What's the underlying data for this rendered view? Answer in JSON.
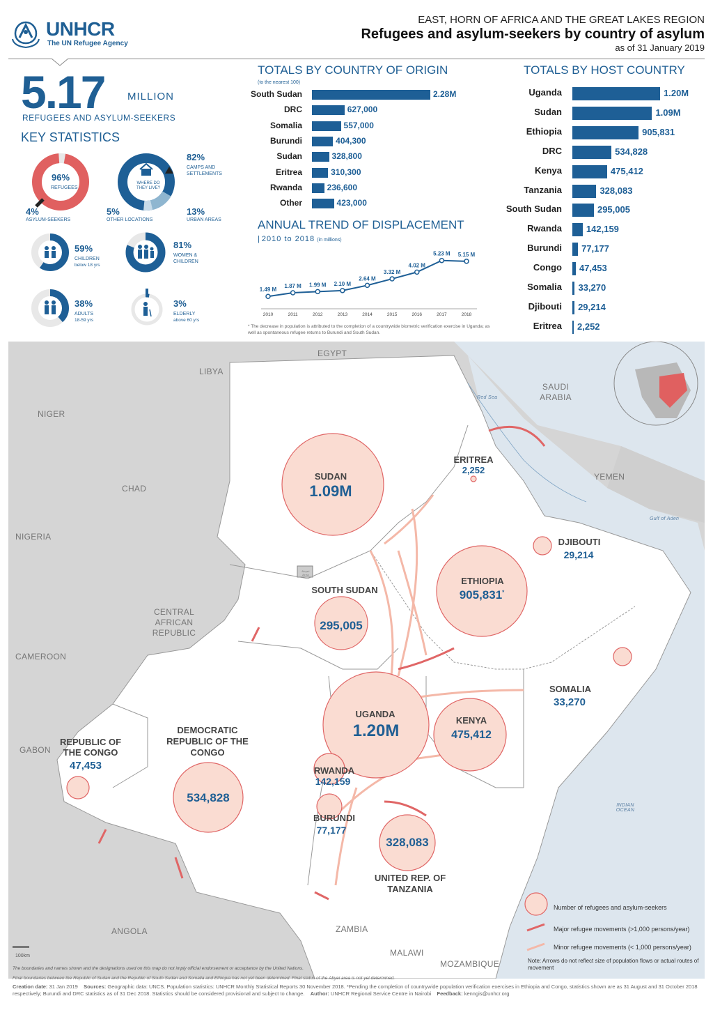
{
  "header": {
    "logo_text": "UNHCR",
    "logo_sub": "The UN Refugee Agency",
    "region": "EAST, HORN OF AFRICA AND THE GREAT LAKES REGION",
    "title": "Refugees and asylum-seekers by country of asylum",
    "date": "as of 31 January 2019"
  },
  "summary": {
    "total": "5.17",
    "unit": "MILLION",
    "caption": "REFUGEES AND ASYLUM-SEEKERS",
    "key_stats_title": "KEY STATISTICS"
  },
  "key_stats": {
    "refugees_pct": "96%",
    "refugees_label": "REFUGEES",
    "asylum_pct": "4%",
    "asylum_label": "ASYLUM-SEEKERS",
    "where_label": "WHERE DO THEY LIVE?",
    "camps_pct": "82%",
    "camps_label": "CAMPS and SETTLEMENTS",
    "other_pct": "5%",
    "other_label": "OTHER LOCATIONS",
    "urban_pct": "13%",
    "urban_label": "URBAN AREAS",
    "children_pct": "59%",
    "children_label": "CHILDREN",
    "children_sub": "below 18 yrs",
    "women_pct": "81%",
    "women_label": "WOMEN & CHILDREN",
    "adults_pct": "38%",
    "adults_label": "ADULTS",
    "adults_sub": "18-59 yrs",
    "elderly_pct": "3%",
    "elderly_label": "ELDERLY",
    "elderly_sub": "above 60 yrs"
  },
  "origin": {
    "title": "TOTALS BY COUNTRY OF ORIGIN",
    "note": "(to the nearest 100)"
  },
  "host": {
    "title": "TOTALS BY HOST COUNTRY"
  },
  "trend": {
    "title": "ANNUAL TREND OF DISPLACEMENT",
    "subtitle": "2010 to 2018",
    "unit": "(in millions)",
    "note": "* The decrease in population is attributed to the completion of a countrywide biometric verification exercise in Uganda; as well as spontaneous refugee returns to Burundi and South Sudan."
  },
  "chart_data": [
    {
      "type": "bar",
      "title": "TOTALS BY COUNTRY OF ORIGIN",
      "categories": [
        "South Sudan",
        "DRC",
        "Somalia",
        "Burundi",
        "Sudan",
        "Eritrea",
        "Rwanda",
        "Other"
      ],
      "values": [
        2280000,
        627000,
        557000,
        404300,
        328800,
        310300,
        236600,
        423000
      ],
      "labels": [
        "2.28M",
        "627,000",
        "557,000",
        "404,300",
        "328,800",
        "310,300",
        "236,600",
        "423,000"
      ]
    },
    {
      "type": "bar",
      "title": "TOTALS BY HOST COUNTRY",
      "categories": [
        "Uganda",
        "Sudan",
        "Ethiopia",
        "DRC",
        "Kenya",
        "Tanzania",
        "South Sudan",
        "Rwanda",
        "Burundi",
        "Congo",
        "Somalia",
        "Djibouti",
        "Eritrea"
      ],
      "values": [
        1200000,
        1090000,
        905831,
        534828,
        475412,
        328083,
        295005,
        142159,
        77177,
        47453,
        33270,
        29214,
        2252
      ],
      "labels": [
        "1.20M",
        "1.09M",
        "905,831",
        "534,828",
        "475,412",
        "328,083",
        "295,005",
        "142,159",
        "77,177",
        "47,453",
        "33,270",
        "29,214",
        "2,252"
      ]
    },
    {
      "type": "line",
      "title": "ANNUAL TREND OF DISPLACEMENT",
      "x": [
        "2010",
        "2011",
        "2012",
        "2013",
        "2014",
        "2015",
        "2016",
        "2017",
        "2018"
      ],
      "values": [
        1.49,
        1.87,
        1.99,
        2.1,
        2.64,
        3.32,
        4.02,
        5.23,
        5.15
      ],
      "labels": [
        "1.49 M",
        "1.87 M",
        "1.99 M",
        "2.10 M",
        "2.64 M",
        "3.32 M",
        "4.02 M",
        "5.23 M",
        "5.15 M"
      ]
    }
  ],
  "map": {
    "labels": [
      "EGYPT",
      "LIBYA",
      "NIGER",
      "CHAD",
      "NIGERIA",
      "CENTRAL AFRICAN REPUBLIC",
      "CAMEROON",
      "GABON",
      "ANGOLA",
      "ZAMBIA",
      "MALAWI",
      "MOZAMBIQUE",
      "SAUDI ARABIA",
      "YEMEN"
    ],
    "sea_labels": [
      "Red Sea",
      "Gulf of Aden",
      "INDIAN OCEAN"
    ],
    "abyei": "Abyei Area",
    "countries": [
      {
        "name": "SUDAN",
        "value": "1.09M"
      },
      {
        "name": "ERITREA",
        "value": "2,252"
      },
      {
        "name": "DJIBOUTI",
        "value": "29,214"
      },
      {
        "name": "ETHIOPIA",
        "value": "905,831"
      },
      {
        "name": "SOUTH SUDAN",
        "value": "295,005"
      },
      {
        "name": "SOMALIA",
        "value": "33,270"
      },
      {
        "name": "UGANDA",
        "value": "1.20M"
      },
      {
        "name": "KENYA",
        "value": "475,412"
      },
      {
        "name": "REPUBLIC OF THE CONGO",
        "value": "47,453"
      },
      {
        "name": "DEMOCRATIC REPUBLIC OF THE CONGO",
        "value": "534,828"
      },
      {
        "name": "RWANDA",
        "value": "142,159"
      },
      {
        "name": "BURUNDI",
        "value": "77,177"
      },
      {
        "name": "UNITED REP. OF TANZANIA",
        "value": "328,083"
      }
    ],
    "ethiopia_asterisk": "*",
    "scale": "100km",
    "disclaimer": "The boundaries and names shown and the designations used on this map do not imply official endorsement or acceptance by the United Nations.",
    "legend": {
      "circle": "Number of refugees and asylum-seekers",
      "major": "Major refugee movements (>1,000 persons/year)",
      "minor": "Minor refugee movements (< 1,000 persons/year)",
      "note": "Note: Arrows do not reflect size of population flows or actual routes of movement"
    }
  },
  "footer": {
    "line0": "Final boundaries between the Republic of Sudan and the Republic of South Sudan and Somalia and Ethiopia has not yet been determined. Final status of the Abyei area is not yet determined.",
    "creation_label": "Creation date:",
    "creation_date": "31 Jan 2019",
    "sources_label": "Sources:",
    "sources": "Geographic data: UNCS. Population statistics: UNHCR Monthly Statistical Reports 30 November 2018. *Pending the completion of countrywide population verification exercises in Ethiopia and Congo, statistics shown are as 31 August and 31 October 2018 respectively; Burundi and DRC statistics as of 31 Dec 2018. Statistics should be considered provisional and subject to change.",
    "author_label": "Author:",
    "author": "UNHCR Regional Service Centre in Nairobi",
    "feedback_label": "Feedback:",
    "feedback": "kenngis@unhcr.org"
  }
}
